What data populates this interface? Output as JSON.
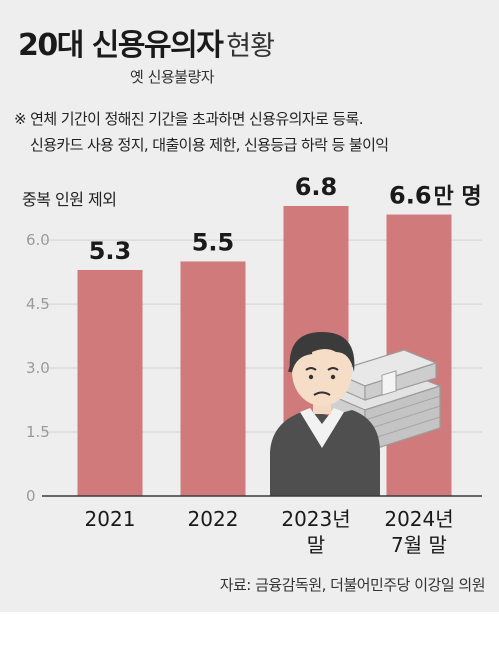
{
  "header": {
    "title_main": "20대 신용유의자",
    "title_sub": "현황",
    "subtitle": "옛 신용불량자",
    "note_line1": "※ 연체 기간이 정해진 기간을 초과하면 신용유의자로 등록.",
    "note_line2": "신용카드 사용 정지, 대출이용 제한, 신용등급 하락 등 불이익",
    "unit_note": "중복 인원 제외"
  },
  "source": "자료: 금융감독원, 더불어민주당 이강일 의원",
  "colors": {
    "bar": "#d07a7c",
    "panel": "#eeeeee",
    "grid": "#d3d3d3",
    "axis": "#3a3a3a"
  },
  "illustration": "worried-person-with-money-stack-icon",
  "chart_data": {
    "type": "bar",
    "categories": [
      [
        "2021"
      ],
      [
        "2022"
      ],
      [
        "2023년",
        "말"
      ],
      [
        "2024년",
        "7월 말"
      ]
    ],
    "values": [
      5.3,
      5.5,
      6.8,
      6.6
    ],
    "value_labels": [
      "5.3",
      "5.5",
      "6.8",
      "6.6"
    ],
    "last_value_unit": "만 명",
    "yticks": [
      "0",
      "1.5",
      "3.0",
      "4.5",
      "6.0"
    ],
    "ylim": [
      0,
      6.8
    ],
    "grid": true,
    "title": "",
    "xlabel": "",
    "ylabel": "중복 인원 제외"
  }
}
